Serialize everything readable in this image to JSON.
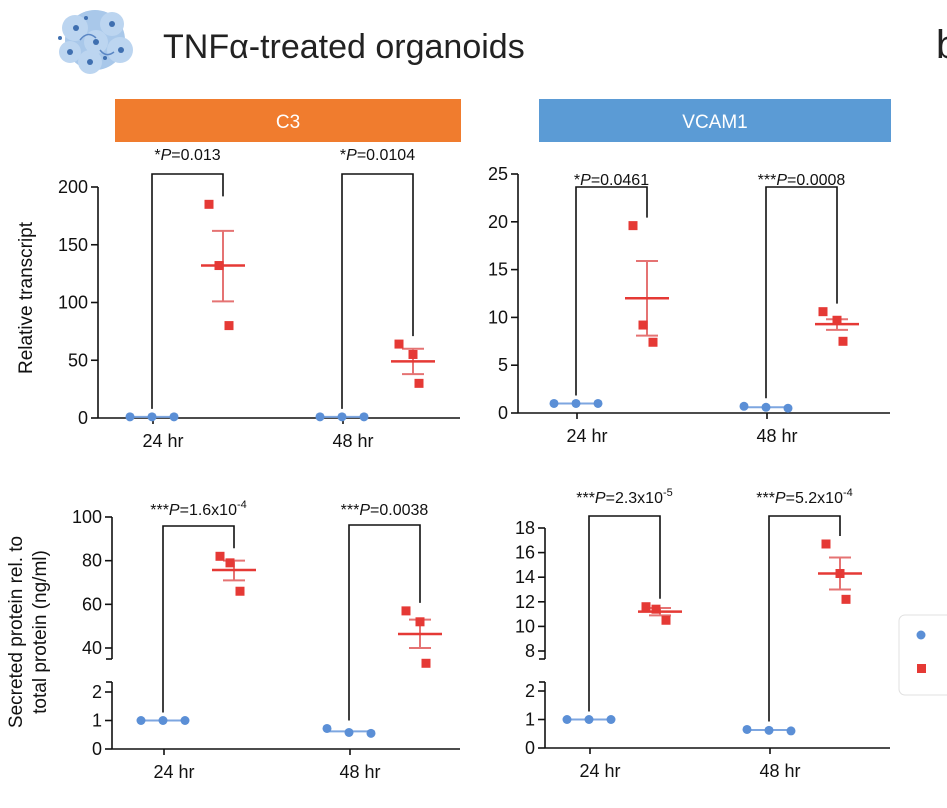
{
  "figure": {
    "title": "TNFα-treated organoids",
    "panel_letter_fragment": "b",
    "icon_name": "organoid-cells-icon",
    "colors": {
      "c3_banner": "#f07c2e",
      "vcam1_banner": "#5b9bd5",
      "vehicle": "#5b8fd6",
      "tnf": "#e53935",
      "tnf_mean": "#e57373",
      "vehicle_mean": "#7da6e0"
    },
    "y_label_top": "Relative transcript",
    "y_label_bottom_line1": "Secreted protein rel. to",
    "y_label_bottom_line2": "total protein (ng/ml)"
  },
  "chart_data": [
    {
      "type": "scatter",
      "title": "C3",
      "ylabel": "Relative transcript",
      "categories": [
        "24 hr",
        "48 hr"
      ],
      "ylim": [
        0,
        200
      ],
      "yticks": [
        "0",
        "50",
        "100",
        "150",
        "200"
      ],
      "groups": [
        {
          "category": "24 hr",
          "annotation_stars": "*",
          "annotation_rest": "=0.013",
          "vehicle": {
            "points": [
              1,
              1,
              1
            ],
            "mean": 1,
            "sem": 0
          },
          "tnf": {
            "points": [
              185,
              132,
              80
            ],
            "mean": 132,
            "sem_low": 101,
            "sem_high": 162
          }
        },
        {
          "category": "48 hr",
          "annotation_stars": "*",
          "annotation_rest": "=0.0104",
          "vehicle": {
            "points": [
              1,
              1,
              1
            ],
            "mean": 1,
            "sem": 0
          },
          "tnf": {
            "points": [
              64,
              55,
              30
            ],
            "mean": 49,
            "sem_low": 38,
            "sem_high": 60
          }
        }
      ]
    },
    {
      "type": "scatter",
      "title": "VCAM1",
      "ylabel": "",
      "categories": [
        "24 hr",
        "48 hr"
      ],
      "ylim": [
        0,
        25
      ],
      "yticks": [
        "0",
        "5",
        "10",
        "15",
        "20",
        "25"
      ],
      "groups": [
        {
          "category": "24 hr",
          "annotation_stars": "*",
          "annotation_rest": "=0.0461",
          "vehicle": {
            "points": [
              1,
              1,
              1
            ],
            "mean": 1,
            "sem": 0
          },
          "tnf": {
            "points": [
              19.6,
              9.2,
              7.4
            ],
            "mean": 12,
            "sem_low": 8.1,
            "sem_high": 15.9
          }
        },
        {
          "category": "48 hr",
          "annotation_stars": "***",
          "annotation_rest": "=0.0008",
          "vehicle": {
            "points": [
              0.7,
              0.6,
              0.5
            ],
            "mean": 0.6,
            "sem": 0.05
          },
          "tnf": {
            "points": [
              10.6,
              9.7,
              7.5
            ],
            "mean": 9.3,
            "sem_low": 8.7,
            "sem_high": 9.8
          }
        }
      ]
    },
    {
      "type": "scatter",
      "title": "",
      "ylabel": "Secreted protein rel. to total protein (ng/ml)",
      "categories": [
        "24 hr",
        "48 hr"
      ],
      "broken_axis": {
        "upper": [
          40,
          100
        ],
        "lower": [
          0,
          2
        ]
      },
      "yticks_upper": [
        "40",
        "60",
        "80",
        "100"
      ],
      "yticks_lower": [
        "0",
        "1",
        "2"
      ],
      "groups": [
        {
          "category": "24 hr",
          "annotation_stars": "***",
          "annotation_rest": "=1.6x10",
          "annotation_exp": "-4",
          "vehicle": {
            "points": [
              1,
              1,
              1
            ],
            "mean": 1,
            "sem": 0
          },
          "tnf": {
            "points": [
              82,
              79,
              66
            ],
            "mean": 75.7,
            "sem_low": 71,
            "sem_high": 80
          }
        },
        {
          "category": "48 hr",
          "annotation_stars": "***",
          "annotation_rest": "=0.0038",
          "annotation_exp": "",
          "vehicle": {
            "points": [
              0.72,
              0.58,
              0.55
            ],
            "mean": 0.62,
            "sem": 0.05
          },
          "tnf": {
            "points": [
              57,
              52,
              33
            ],
            "mean": 46.4,
            "sem_low": 40,
            "sem_high": 53
          }
        }
      ]
    },
    {
      "type": "scatter",
      "title": "",
      "ylabel": "",
      "categories": [
        "24 hr",
        "48 hr"
      ],
      "broken_axis": {
        "upper": [
          8,
          18
        ],
        "lower": [
          0,
          2
        ]
      },
      "yticks_upper": [
        "8",
        "10",
        "12",
        "14",
        "16",
        "18"
      ],
      "yticks_lower": [
        "0",
        "1",
        "2"
      ],
      "groups": [
        {
          "category": "24 hr",
          "annotation_stars": "***",
          "annotation_rest": "=2.3x10",
          "annotation_exp": "-5",
          "vehicle": {
            "points": [
              1,
              1,
              1
            ],
            "mean": 1,
            "sem": 0
          },
          "tnf": {
            "points": [
              11.6,
              11.4,
              10.5
            ],
            "mean": 11.2,
            "sem_low": 10.9,
            "sem_high": 11.5
          }
        },
        {
          "category": "48 hr",
          "annotation_stars": "***",
          "annotation_rest": "=5.2x10",
          "annotation_exp": "-4",
          "vehicle": {
            "points": [
              0.65,
              0.62,
              0.6
            ],
            "mean": 0.63,
            "sem": 0.02
          },
          "tnf": {
            "points": [
              16.7,
              14.3,
              12.2
            ],
            "mean": 14.3,
            "sem_low": 13.0,
            "sem_high": 15.6
          }
        }
      ]
    }
  ]
}
